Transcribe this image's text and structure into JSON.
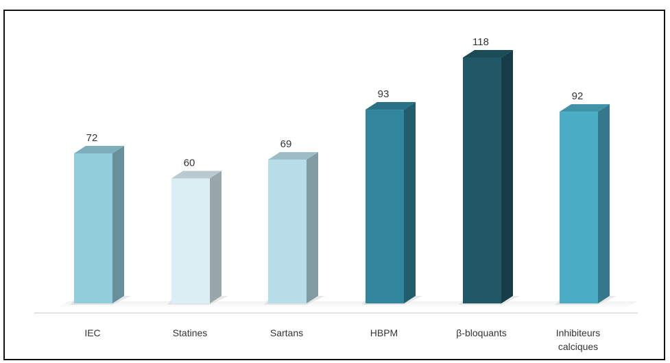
{
  "chart_data": {
    "type": "bar",
    "categories": [
      [
        "IEC"
      ],
      [
        "Statines"
      ],
      [
        "Sartans"
      ],
      [
        "HBPM"
      ],
      [
        "β-bloquants"
      ],
      [
        "Inhibiteurs",
        "calciques"
      ]
    ],
    "values": [
      72,
      60,
      69,
      93,
      118,
      92
    ],
    "bar_colors": [
      "#92cddc",
      "#daeef3",
      "#b7dee8",
      "#31859c",
      "#215867",
      "#4bacc6"
    ],
    "ylim": [
      0,
      120
    ],
    "grid": false,
    "legend": "none",
    "title": "",
    "xlabel": "",
    "ylabel": ""
  }
}
